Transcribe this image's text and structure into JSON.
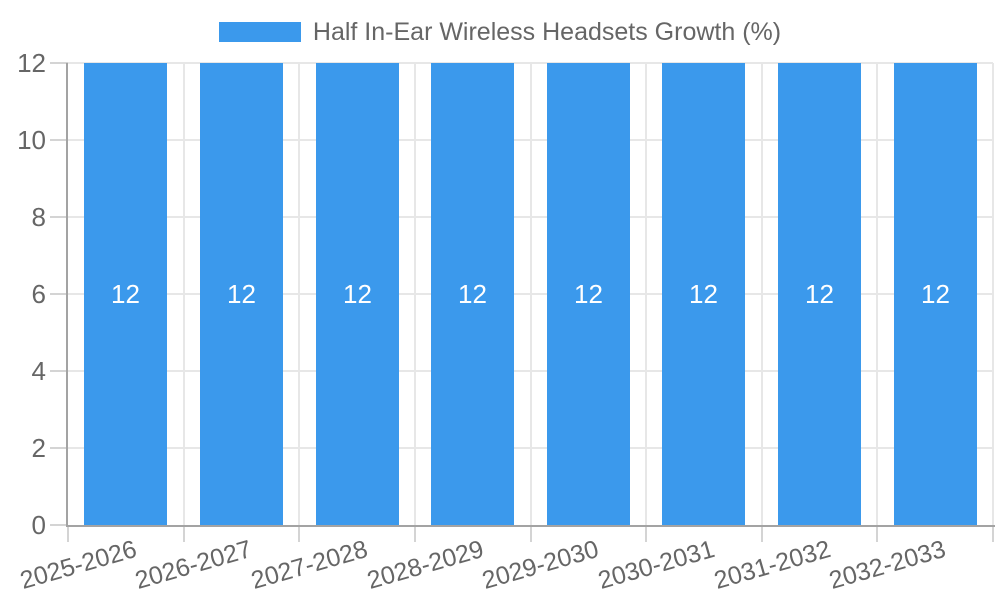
{
  "chart_data": {
    "type": "bar",
    "title": "Half In-Ear Wireless Headsets Growth (%)",
    "categories": [
      "2025-2026",
      "2026-2027",
      "2027-2028",
      "2028-2029",
      "2029-2030",
      "2030-2031",
      "2031-2032",
      "2032-2033"
    ],
    "series": [
      {
        "name": "Half In-Ear Wireless Headsets Growth (%)",
        "values": [
          12,
          12,
          12,
          12,
          12,
          12,
          12,
          12
        ]
      }
    ],
    "bar_value_labels": [
      "12",
      "12",
      "12",
      "12",
      "12",
      "12",
      "12",
      "12"
    ],
    "xlabel": "",
    "ylabel": "",
    "ylim": [
      0,
      12
    ],
    "yticks": [
      0,
      2,
      4,
      6,
      8,
      10,
      12
    ],
    "grid": true,
    "legend_position": "top",
    "colors": {
      "bar": "#3b99ec",
      "bar_label": "#ffffff",
      "axis_text": "#666666",
      "grid_line": "#e7e7e7",
      "axis_line": "#a3a3a3",
      "tick_mark": "#d4d4d4",
      "background": "#ffffff"
    }
  }
}
